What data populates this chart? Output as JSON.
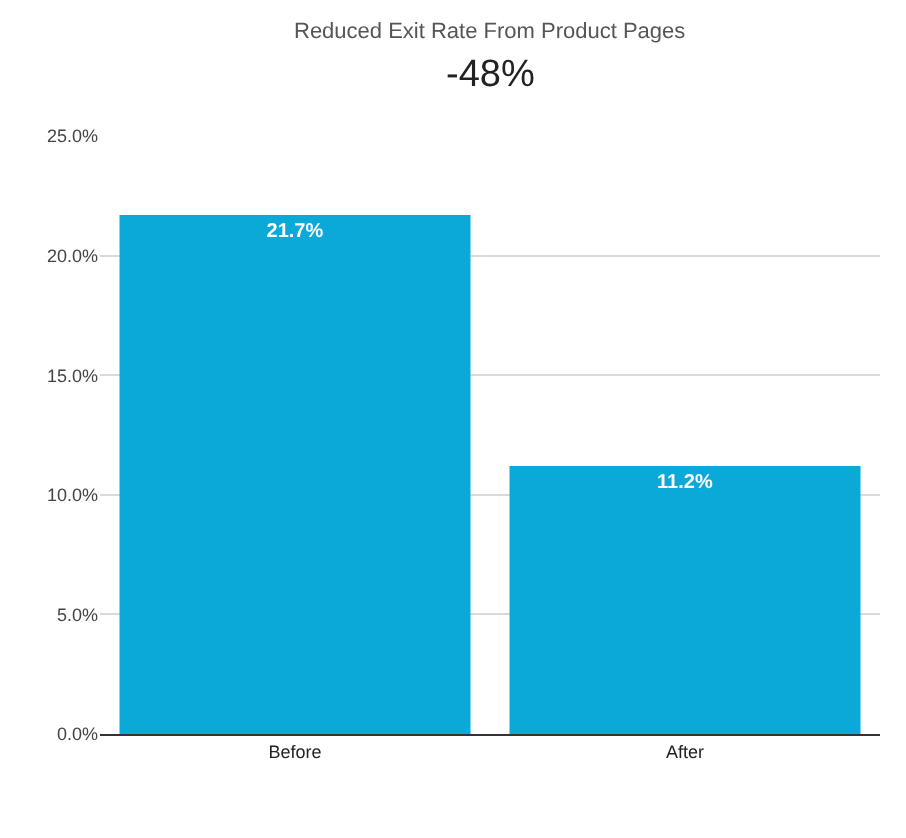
{
  "chart_data": {
    "type": "bar",
    "title": "Reduced Exit Rate From Product Pages",
    "subtitle": "-48%",
    "categories": [
      "Before",
      "After"
    ],
    "values": [
      21.7,
      11.2
    ],
    "value_labels": [
      "21.7%",
      "11.2%"
    ],
    "color": "#0ba9d8",
    "ylim": [
      0,
      25
    ],
    "yticks": [
      {
        "value": 0,
        "label": "0.0%"
      },
      {
        "value": 5,
        "label": "5.0%"
      },
      {
        "value": 10,
        "label": "10.0%"
      },
      {
        "value": 15,
        "label": "15.0%"
      },
      {
        "value": 20,
        "label": "20.0%"
      },
      {
        "value": 25,
        "label": "25.0%"
      }
    ],
    "grid": "y"
  }
}
